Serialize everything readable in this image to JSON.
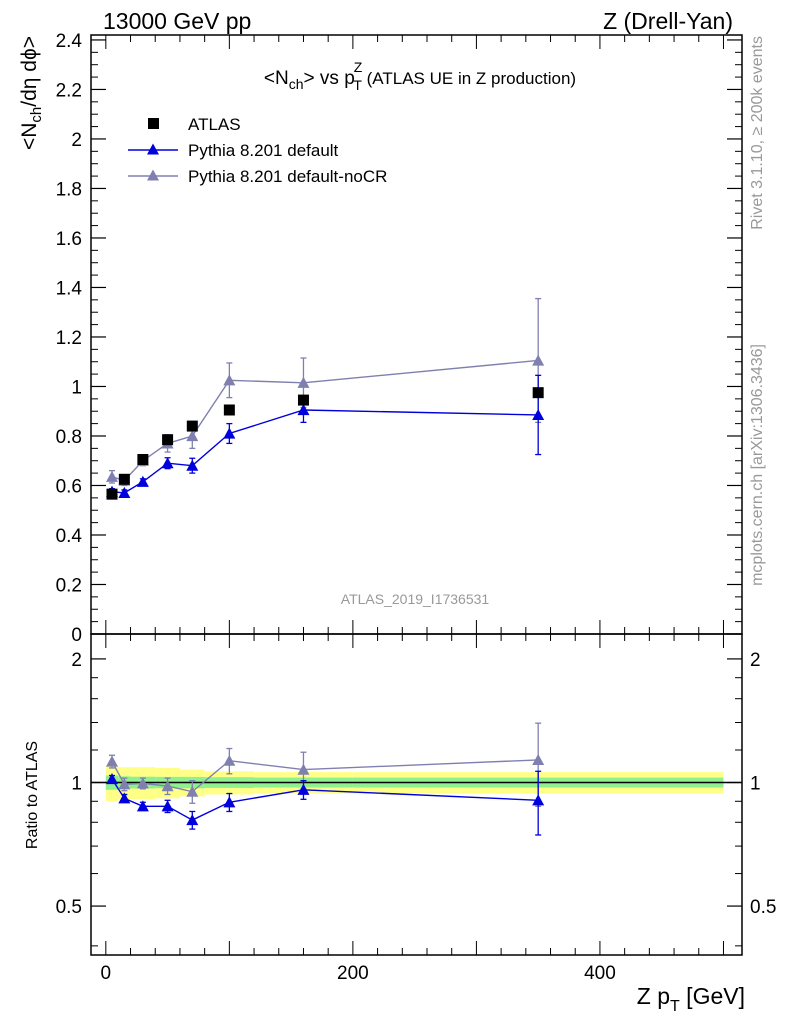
{
  "header": {
    "beam_label": "13000 GeV pp",
    "process_label": "Z (Drell-Yan)"
  },
  "side_texts": {
    "rivet_version": "Rivet 3.1.10, ≥ 200k events",
    "mcplots_ref": "mcplots.cern.ch [arXiv:1306.3436]"
  },
  "chart_data": [
    {
      "type": "scatter",
      "title": {
        "pre": "<N",
        "sub1": "ch",
        "mid": "> vs p",
        "sup2": "Z",
        "sub2": "T",
        "post": " (ATLAS UE in Z production)"
      },
      "ylabel": {
        "pre": "<N",
        "sub": "ch",
        "post": "/dη dϕ>"
      },
      "watermark": "ATLAS_2019_I1736531",
      "xlim": [
        -12,
        515
      ],
      "ylim": [
        0,
        2.42
      ],
      "y_ticks": [
        "0",
        "0.2",
        "0.4",
        "0.6",
        "0.8",
        "1",
        "1.2",
        "1.4",
        "1.6",
        "1.8",
        "2",
        "2.2",
        "2.4"
      ],
      "legend_position": "top-left",
      "x": [
        5,
        15,
        30,
        50,
        70,
        100,
        160,
        350
      ],
      "series": [
        {
          "name": "ATLAS",
          "marker": "square",
          "color": "#000000",
          "values": [
            0.565,
            0.625,
            0.705,
            0.785,
            0.84,
            0.905,
            0.945,
            0.975
          ]
        },
        {
          "name": "Pythia 8.201 default",
          "marker": "triangle",
          "color": "#0000dd",
          "values": [
            0.575,
            0.57,
            0.615,
            0.69,
            0.68,
            0.81,
            0.905,
            0.885
          ],
          "errors": [
            0.012,
            0.012,
            0.012,
            0.022,
            0.03,
            0.04,
            0.05,
            0.16
          ]
        },
        {
          "name": "Pythia 8.201 default-noCR",
          "marker": "triangle",
          "color": "#8080b0",
          "values": [
            0.635,
            0.62,
            0.7,
            0.77,
            0.8,
            1.025,
            1.015,
            1.105
          ],
          "errors": [
            0.025,
            0.02,
            0.02,
            0.035,
            0.05,
            0.07,
            0.1,
            0.25
          ]
        }
      ]
    },
    {
      "type": "scatter",
      "ylabel": "Ratio to ATLAS",
      "xlabel": {
        "pre": "Z p",
        "sub": "T",
        "post": " [GeV]"
      },
      "xlim": [
        -12,
        515
      ],
      "ylim": [
        0.38,
        2.3
      ],
      "y_ticks": [
        "0.5",
        "1",
        "2"
      ],
      "x_ticks": [
        "0",
        "200",
        "400"
      ],
      "x": [
        5,
        15,
        30,
        50,
        70,
        100,
        160,
        350
      ],
      "band_inner": {
        "color": "#8ef08e",
        "x_edges": [
          0,
          10,
          20,
          40,
          60,
          80,
          120,
          200,
          500
        ],
        "half_widths": [
          0.04,
          0.035,
          0.033,
          0.032,
          0.032,
          0.03,
          0.028,
          0.028
        ]
      },
      "band_outer": {
        "color": "#ffff88",
        "x_edges": [
          0,
          10,
          20,
          40,
          60,
          80,
          120,
          200,
          500
        ],
        "half_widths": [
          0.1,
          0.09,
          0.09,
          0.085,
          0.075,
          0.065,
          0.06,
          0.06
        ]
      },
      "series": [
        {
          "name": "Pythia 8.201 default",
          "color": "#0000dd",
          "values": [
            1.02,
            0.915,
            0.875,
            0.875,
            0.81,
            0.895,
            0.96,
            0.905
          ],
          "errors": [
            0.02,
            0.02,
            0.02,
            0.03,
            0.04,
            0.045,
            0.05,
            0.16
          ]
        },
        {
          "name": "Pythia 8.201 default-noCR",
          "color": "#8080b0",
          "values": [
            1.125,
            0.99,
            0.995,
            0.98,
            0.95,
            1.13,
            1.075,
            1.135
          ],
          "errors": [
            0.04,
            0.035,
            0.03,
            0.045,
            0.06,
            0.08,
            0.11,
            0.26
          ]
        }
      ]
    }
  ]
}
